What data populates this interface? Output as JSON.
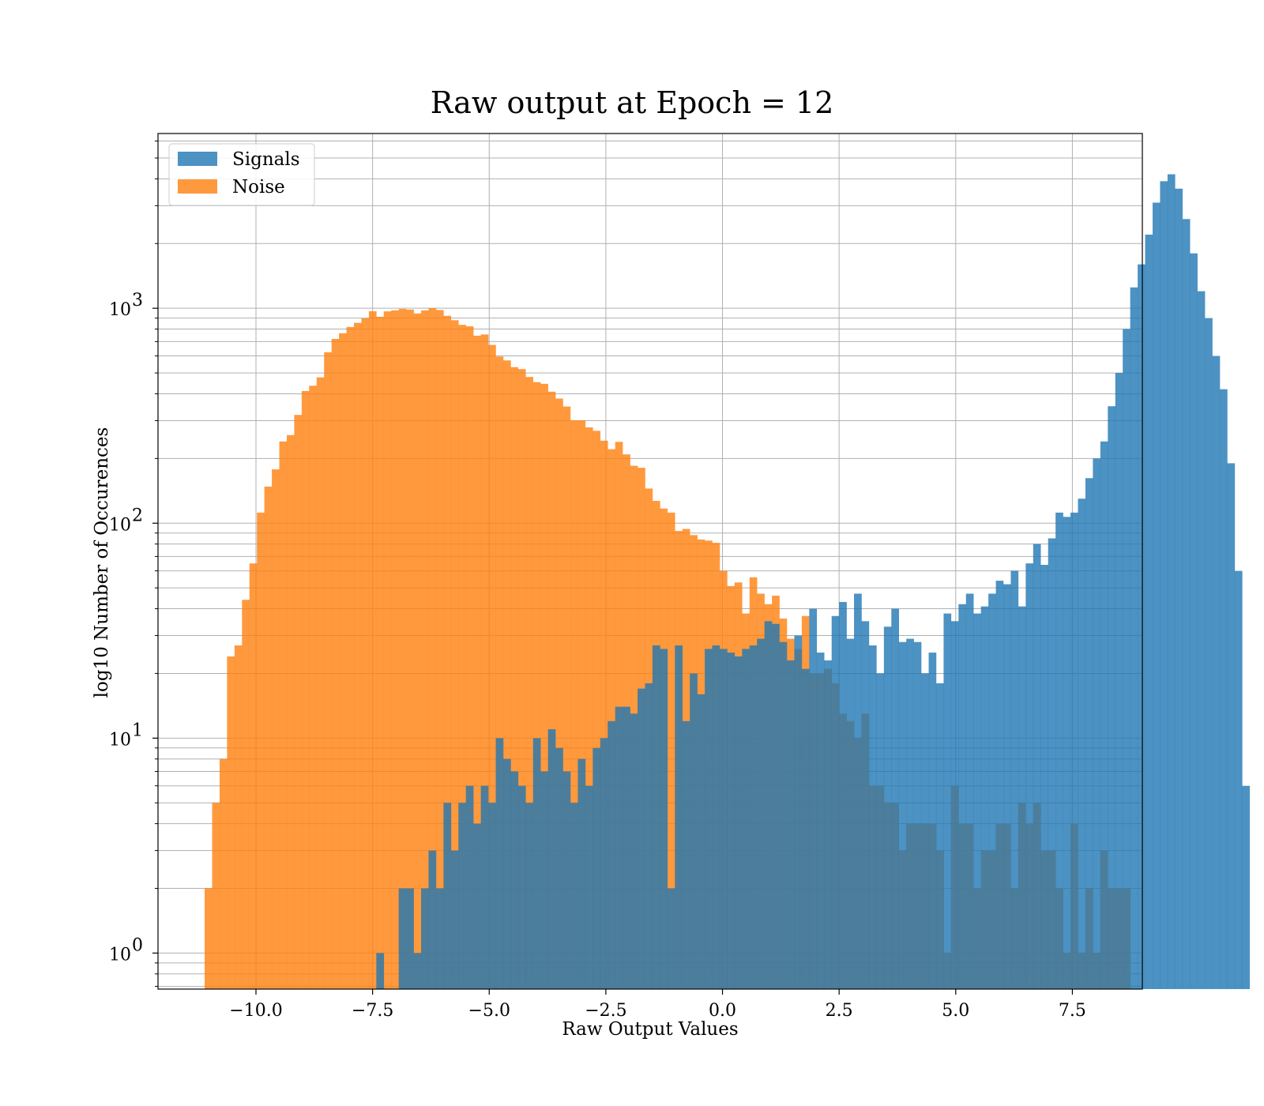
{
  "chart_data": {
    "type": "bar",
    "subtype": "overlapping histogram",
    "title": "Raw output at Epoch = 12",
    "xlabel": "Raw Output Values",
    "ylabel": "log10 Number of Occurences",
    "xlim": [
      -12.1,
      9.0
    ],
    "ylim": [
      0.68,
      6500
    ],
    "yscale": "log",
    "grid": true,
    "legend_position": "top-left",
    "x_ticks": [
      -10.0,
      -7.5,
      -5.0,
      -2.5,
      0.0,
      2.5,
      5.0,
      7.5
    ],
    "x_tick_labels": [
      "−10.0",
      "−7.5",
      "−5.0",
      "−2.5",
      "0.0",
      "2.5",
      "5.0",
      "7.5"
    ],
    "y_ticks": [
      1,
      10,
      100,
      1000
    ],
    "y_tick_labels": [
      {
        "base": "10",
        "exp": "0"
      },
      {
        "base": "10",
        "exp": "1"
      },
      {
        "base": "10",
        "exp": "2"
      },
      {
        "base": "10",
        "exp": "3"
      }
    ],
    "bin_start": -11.1,
    "bin_width": 0.16,
    "series": [
      {
        "name": "Signals",
        "color": "#1f77b4",
        "opacity": 0.8,
        "start_bin": 23,
        "counts": [
          1,
          0,
          0,
          2,
          2,
          1,
          2,
          3,
          2,
          5,
          3,
          5,
          6,
          4,
          6,
          5,
          10,
          8,
          7,
          6,
          5,
          10,
          7,
          11,
          9,
          7,
          5,
          8,
          6,
          9,
          10,
          12,
          14,
          14,
          13,
          17,
          18,
          27,
          26,
          2,
          27,
          12,
          20,
          16,
          26,
          27,
          26,
          25,
          24,
          26,
          27,
          29,
          35,
          34,
          28,
          23,
          30,
          21,
          40,
          25,
          23,
          37,
          43,
          29,
          47,
          35,
          27,
          20,
          33,
          40,
          28,
          29,
          28,
          20,
          25,
          18,
          38,
          35,
          42,
          47,
          38,
          41,
          47,
          54,
          52,
          60,
          41,
          65,
          80,
          64,
          85,
          112,
          107,
          112,
          130,
          162,
          200,
          240,
          350,
          500,
          800,
          1250,
          1600,
          2200,
          3100,
          3900,
          4200,
          3600,
          2600,
          1800,
          1200,
          900,
          600,
          420,
          190,
          60,
          6
        ]
      },
      {
        "name": "Noise",
        "color": "#ff7f0e",
        "opacity": 0.8,
        "start_bin": 0,
        "counts": [
          2,
          5,
          8,
          24,
          27,
          44,
          65,
          112,
          148,
          178,
          240,
          257,
          319,
          412,
          436,
          477,
          624,
          720,
          765,
          818,
          855,
          897,
          968,
          913,
          967,
          978,
          993,
          986,
          946,
          977,
          1001,
          981,
          922,
          880,
          837,
          824,
          745,
          755,
          675,
          596,
          572,
          532,
          521,
          479,
          453,
          445,
          409,
          380,
          349,
          301,
          301,
          279,
          269,
          242,
          221,
          239,
          209,
          185,
          181,
          145,
          127,
          117,
          112,
          92,
          94,
          88,
          84,
          83,
          81,
          60,
          51,
          53,
          38,
          56,
          47,
          42,
          46,
          36,
          29,
          26,
          37,
          20,
          20,
          21,
          18,
          13,
          12,
          10,
          13,
          6,
          6,
          5,
          5,
          3,
          4,
          4,
          4,
          4,
          3,
          1,
          6,
          4,
          4,
          2,
          3,
          3,
          4,
          4,
          2,
          5,
          4,
          5,
          3,
          3,
          2,
          1,
          4,
          1,
          2,
          1,
          3,
          2,
          2,
          2
        ]
      }
    ]
  }
}
